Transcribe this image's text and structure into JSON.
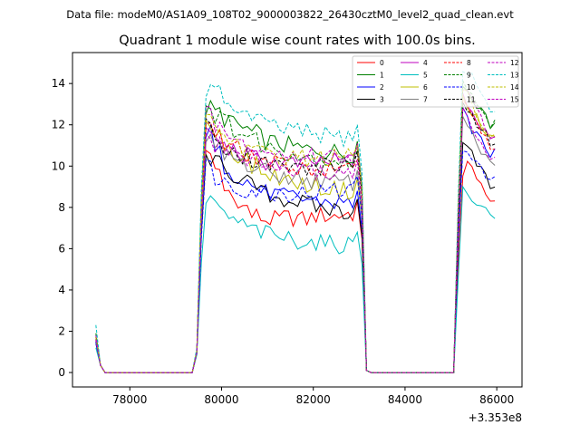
{
  "figure": {
    "suptitle": "Data file: modeM0/AS1A09_108T02_9000003822_26430cztM0_level2_quad_clean.evt",
    "title": "Quadrant 1 module wise count rates with 100.0s bins.",
    "offset_label": "+3.353e8"
  },
  "chart_data": {
    "type": "line",
    "title": "Quadrant 1 module wise count rates with 100.0s bins.",
    "xlabel": "",
    "ylabel": "",
    "x_offset": 335300000,
    "xlim": [
      76750,
      86550
    ],
    "ylim": [
      -0.7,
      15.5
    ],
    "xticks": [
      78000,
      80000,
      82000,
      84000,
      86000
    ],
    "yticks": [
      0,
      2,
      4,
      6,
      8,
      10,
      12,
      14
    ],
    "grid": false,
    "legend": {
      "position": "top-right",
      "columns": 4
    },
    "segments": [
      {
        "start": 77260,
        "n": 21
      },
      {
        "start": 79360,
        "n": 38
      },
      {
        "start": 83160,
        "n": 20
      },
      {
        "start": 85160,
        "n": 9
      }
    ],
    "series": [
      {
        "name": "0",
        "color": "#ff0000",
        "dash": false,
        "low": 1.6,
        "high": [
          10.8,
          9.6,
          8.8,
          8.4,
          8.0,
          7.6,
          7.5,
          7.4,
          7.4,
          7.5,
          7.5,
          7.4,
          7.5,
          7.6,
          7.6,
          7.6,
          7.7,
          7.7,
          7.6,
          7.9,
          8.5,
          9.4,
          10.2,
          10.0,
          9.5,
          9.0,
          8.5,
          8.3
        ]
      },
      {
        "name": "1",
        "color": "#008000",
        "dash": false,
        "low": 1.8,
        "high": [
          12.8,
          12.6,
          12.3,
          12.0,
          11.8,
          11.6,
          11.4,
          11.2,
          11.1,
          11.0,
          10.9,
          10.8,
          10.8,
          10.8,
          10.7,
          10.7,
          10.6,
          10.6,
          10.6,
          10.8,
          12.5,
          13.8,
          13.6,
          13.2,
          12.9,
          12.6,
          12.3,
          12.0
        ]
      },
      {
        "name": "2",
        "color": "#0000ff",
        "dash": false,
        "low": 1.4,
        "high": [
          11.6,
          10.6,
          10.0,
          9.6,
          9.3,
          9.0,
          8.8,
          8.7,
          8.6,
          8.5,
          8.5,
          8.4,
          8.4,
          8.3,
          8.3,
          8.2,
          8.2,
          8.2,
          8.2,
          8.4,
          10.6,
          12.6,
          12.2,
          11.8,
          11.5,
          11.2,
          10.9,
          10.6
        ]
      },
      {
        "name": "3",
        "color": "#000000",
        "dash": false,
        "low": 1.5,
        "high": [
          10.4,
          10.1,
          9.8,
          9.5,
          9.2,
          9.0,
          8.8,
          8.6,
          8.5,
          8.4,
          8.3,
          8.2,
          8.1,
          8.0,
          7.9,
          7.9,
          7.8,
          7.8,
          7.8,
          8.2,
          10.3,
          11.3,
          11.0,
          10.6,
          10.2,
          9.8,
          9.4,
          9.0
        ]
      },
      {
        "name": "4",
        "color": "#bf00bf",
        "dash": false,
        "low": 1.6,
        "high": [
          11.8,
          11.2,
          10.9,
          10.7,
          10.5,
          10.4,
          10.3,
          10.2,
          10.2,
          10.1,
          10.1,
          10.1,
          10.1,
          10.2,
          10.2,
          10.2,
          10.3,
          10.3,
          10.3,
          10.5,
          12.3,
          13.4,
          13.0,
          12.6,
          12.2,
          11.9,
          11.6,
          11.3
        ]
      },
      {
        "name": "5",
        "color": "#00bfbf",
        "dash": false,
        "low": 1.2,
        "high": [
          8.2,
          8.0,
          7.6,
          7.3,
          7.1,
          6.9,
          6.8,
          6.7,
          6.6,
          6.5,
          6.4,
          6.4,
          6.3,
          6.3,
          6.2,
          6.2,
          6.2,
          6.2,
          6.2,
          6.3,
          7.3,
          8.8,
          8.6,
          8.4,
          8.2,
          8.0,
          7.8,
          7.6
        ]
      },
      {
        "name": "6",
        "color": "#bfbf00",
        "dash": false,
        "low": 1.7,
        "high": [
          12.0,
          11.5,
          11.0,
          10.6,
          10.3,
          10.0,
          9.8,
          9.6,
          9.5,
          9.3,
          9.2,
          9.1,
          9.0,
          9.0,
          8.9,
          8.9,
          8.8,
          8.8,
          8.8,
          9.2,
          11.8,
          13.2,
          12.9,
          12.6,
          12.3,
          12.0,
          11.7,
          11.4
        ]
      },
      {
        "name": "7",
        "color": "#808080",
        "dash": false,
        "low": 1.5,
        "high": [
          11.2,
          10.8,
          10.5,
          10.3,
          10.1,
          9.9,
          9.8,
          9.7,
          9.6,
          9.5,
          9.4,
          9.4,
          9.3,
          9.3,
          9.2,
          9.2,
          9.2,
          9.2,
          9.2,
          9.5,
          11.5,
          12.3,
          12.0,
          11.6,
          11.2,
          10.8,
          10.4,
          10.0
        ]
      },
      {
        "name": "8",
        "color": "#ff0000",
        "dash": true,
        "low": 1.7,
        "high": [
          12.2,
          11.5,
          11.0,
          10.8,
          10.6,
          10.4,
          10.3,
          10.2,
          10.1,
          10.0,
          10.0,
          9.9,
          9.9,
          9.8,
          9.8,
          9.8,
          9.7,
          9.7,
          9.7,
          9.9,
          12.0,
          13.3,
          13.0,
          12.6,
          12.2,
          11.8,
          11.4,
          11.0
        ]
      },
      {
        "name": "9",
        "color": "#008000",
        "dash": true,
        "low": 1.9,
        "high": [
          12.9,
          12.5,
          12.1,
          11.8,
          11.5,
          11.3,
          11.1,
          10.9,
          10.8,
          10.7,
          10.6,
          10.5,
          10.4,
          10.4,
          10.3,
          10.3,
          10.2,
          10.2,
          10.2,
          10.5,
          12.7,
          14.0,
          13.7,
          13.3,
          13.0,
          12.6,
          12.3,
          12.0
        ]
      },
      {
        "name": "10",
        "color": "#0000ff",
        "dash": true,
        "low": 1.5,
        "high": [
          10.0,
          9.5,
          9.2,
          9.0,
          8.9,
          8.8,
          8.8,
          8.7,
          8.7,
          8.7,
          8.7,
          8.7,
          8.7,
          8.7,
          8.8,
          8.8,
          8.8,
          8.9,
          8.9,
          9.0,
          10.2,
          10.6,
          10.5,
          10.3,
          10.1,
          9.9,
          9.6,
          9.3
        ]
      },
      {
        "name": "11",
        "color": "#000000",
        "dash": true,
        "low": 1.6,
        "high": [
          11.9,
          11.3,
          11.0,
          10.7,
          10.5,
          10.3,
          10.2,
          10.1,
          10.0,
          10.0,
          9.9,
          9.9,
          9.9,
          9.9,
          10.0,
          10.0,
          10.1,
          10.1,
          10.2,
          10.4,
          12.2,
          13.1,
          12.8,
          12.4,
          12.1,
          11.8,
          11.5,
          11.2
        ]
      },
      {
        "name": "12",
        "color": "#bf00bf",
        "dash": true,
        "low": 1.8,
        "high": [
          12.5,
          11.9,
          11.5,
          11.2,
          11.0,
          10.8,
          10.7,
          10.6,
          10.6,
          10.5,
          10.5,
          10.5,
          10.5,
          10.5,
          10.5,
          10.5,
          10.5,
          10.5,
          10.5,
          10.8,
          12.8,
          13.9,
          13.5,
          13.1,
          12.7,
          12.3,
          11.9,
          11.5
        ]
      },
      {
        "name": "13",
        "color": "#00bfbf",
        "dash": true,
        "low": 2.3,
        "high": [
          13.7,
          13.5,
          13.1,
          12.8,
          12.5,
          12.3,
          12.1,
          12.0,
          11.9,
          11.8,
          11.7,
          11.6,
          11.6,
          11.5,
          11.5,
          11.4,
          11.4,
          11.4,
          11.4,
          11.6,
          13.8,
          14.8,
          14.6,
          14.3,
          14.0,
          13.6,
          13.2,
          12.8
        ]
      },
      {
        "name": "14",
        "color": "#bfbf00",
        "dash": true,
        "low": 1.7,
        "high": [
          12.4,
          11.8,
          11.4,
          11.1,
          10.9,
          10.7,
          10.6,
          10.5,
          10.5,
          10.4,
          10.4,
          10.4,
          10.4,
          10.4,
          10.4,
          10.4,
          10.4,
          10.4,
          10.4,
          10.7,
          12.6,
          13.7,
          13.4,
          13.0,
          12.6,
          12.2,
          11.8,
          11.4
        ]
      },
      {
        "name": "15",
        "color": "#bf00bf",
        "dash": true,
        "low": 1.6,
        "high": [
          11.4,
          11.0,
          10.8,
          10.6,
          10.4,
          10.2,
          10.1,
          10.0,
          9.9,
          9.8,
          9.8,
          9.7,
          9.7,
          9.7,
          9.7,
          9.7,
          9.7,
          9.7,
          9.7,
          9.9,
          11.8,
          12.6,
          12.3,
          11.9,
          11.5,
          11.1,
          10.7,
          10.3
        ]
      }
    ]
  }
}
